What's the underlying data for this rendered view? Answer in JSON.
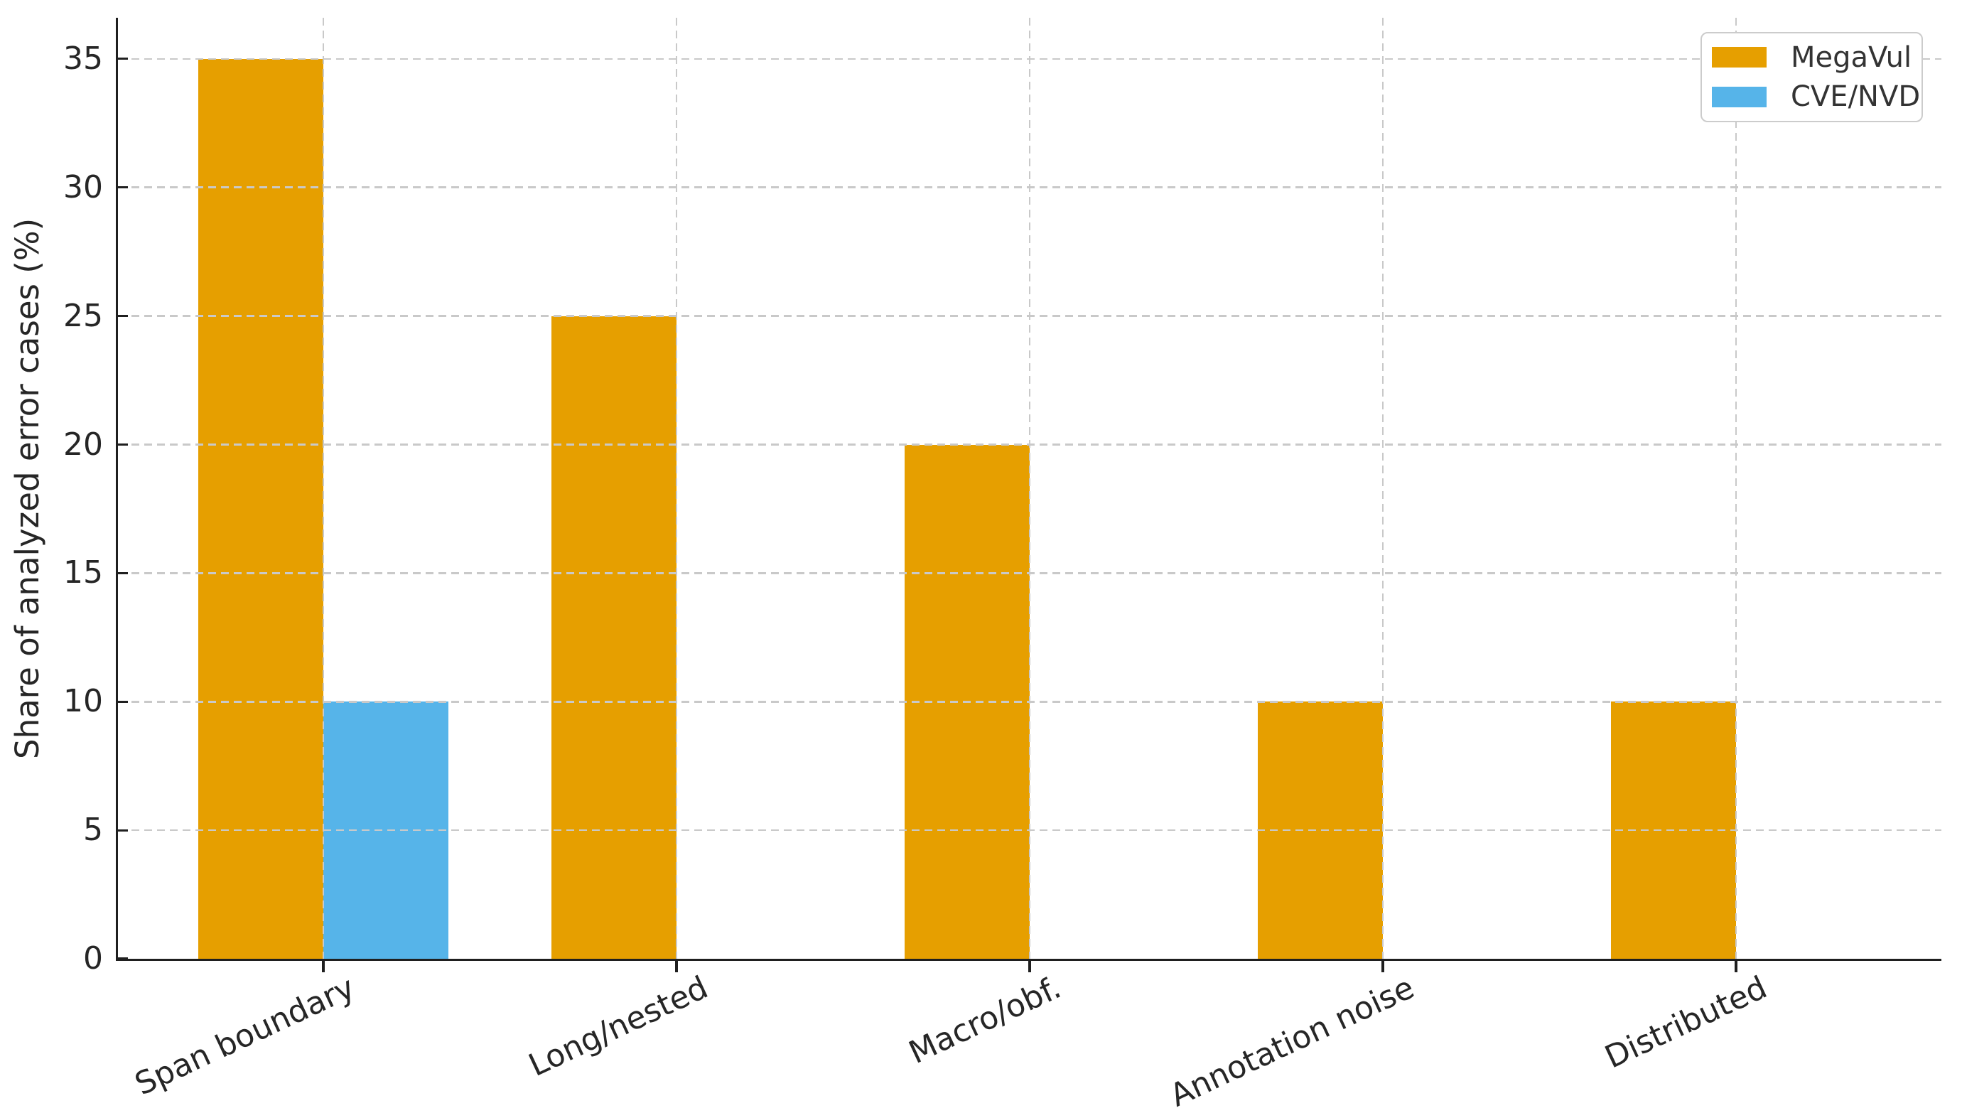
{
  "chart_data": {
    "type": "bar",
    "categories": [
      "Span boundary",
      "Long/nested",
      "Macro/obf.",
      "Annotation noise",
      "Distributed"
    ],
    "series": [
      {
        "name": "MegaVul",
        "color": "#E69F00",
        "values": [
          35,
          25,
          20,
          10,
          10
        ]
      },
      {
        "name": "CVE/NVD",
        "color": "#56B4E9",
        "values": [
          10,
          0,
          0,
          0,
          0
        ]
      }
    ],
    "title": "",
    "xlabel": "",
    "ylabel": "Share of analyzed error cases (%)",
    "yticks": [
      0,
      5,
      10,
      15,
      20,
      25,
      30,
      35
    ],
    "ytick_labels": [
      "0",
      "5",
      "10",
      "15",
      "20",
      "25",
      "30",
      "35"
    ],
    "ylim": [
      0,
      36.6
    ],
    "grid": "both-dashed",
    "legend_position": "upper right",
    "colors": {
      "grid": "#c9c9c9",
      "spine": "#1f1f1f",
      "tick_label": "#262626",
      "legend_border": "#cccccc",
      "background": "#ffffff"
    }
  }
}
